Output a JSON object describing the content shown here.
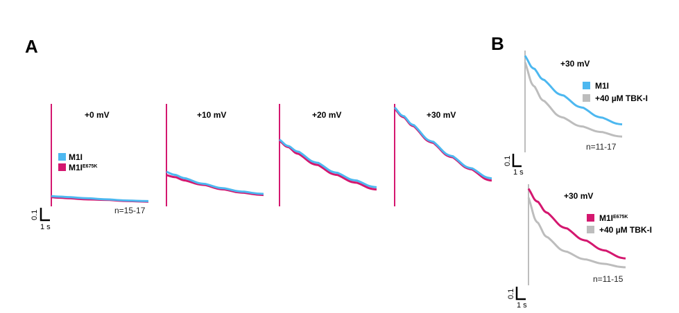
{
  "colors": {
    "M1I": "#4db8f0",
    "M1I_E675K": "#d4176f",
    "TBK": "#bdbdbd"
  },
  "chart_data": [
    {
      "type": "line",
      "panel": "A",
      "title": "+0 mV",
      "n_label": "n=15-17",
      "legend": [
        {
          "name": "M1I",
          "sup": ""
        },
        {
          "name": "M1I",
          "sup": "E675K"
        }
      ],
      "scale_bar": {
        "y": "0.1",
        "x": "1 s"
      },
      "x": [
        0,
        1,
        2,
        4,
        6,
        8,
        10
      ],
      "series": [
        {
          "key": "M1I",
          "values": [
            0.08,
            0.075,
            0.07,
            0.06,
            0.05,
            0.04,
            0.035
          ]
        },
        {
          "key": "M1I_E675K",
          "values": [
            0.07,
            0.065,
            0.06,
            0.05,
            0.045,
            0.035,
            0.03
          ]
        }
      ]
    },
    {
      "type": "line",
      "panel": "A",
      "title": "+10 mV",
      "x": [
        0,
        1,
        2,
        4,
        6,
        8,
        10
      ],
      "series": [
        {
          "key": "M1I",
          "values": [
            0.3,
            0.27,
            0.24,
            0.19,
            0.15,
            0.12,
            0.1
          ]
        },
        {
          "key": "M1I_E675K",
          "values": [
            0.27,
            0.25,
            0.22,
            0.18,
            0.14,
            0.11,
            0.09
          ]
        }
      ]
    },
    {
      "type": "line",
      "panel": "A",
      "title": "+20 mV",
      "x": [
        0,
        1,
        2,
        4,
        6,
        8,
        10
      ],
      "series": [
        {
          "key": "M1I",
          "values": [
            0.59,
            0.53,
            0.48,
            0.38,
            0.29,
            0.22,
            0.16
          ]
        },
        {
          "key": "M1I_E675K",
          "values": [
            0.58,
            0.52,
            0.46,
            0.36,
            0.27,
            0.2,
            0.14
          ]
        }
      ]
    },
    {
      "type": "line",
      "panel": "A",
      "title": "+30 mV",
      "x": [
        0,
        1,
        2,
        4,
        6,
        8,
        10
      ],
      "series": [
        {
          "key": "M1I",
          "values": [
            0.88,
            0.8,
            0.72,
            0.57,
            0.44,
            0.33,
            0.24
          ]
        },
        {
          "key": "M1I_E675K",
          "values": [
            0.87,
            0.79,
            0.71,
            0.56,
            0.43,
            0.32,
            0.22
          ]
        }
      ]
    },
    {
      "type": "line",
      "panel": "B",
      "title": "+30 mV",
      "n_label": "n=11-17",
      "legend": [
        {
          "name": "M1I",
          "sup": ""
        },
        {
          "name": "+40 µM TBK-I",
          "sup": ""
        }
      ],
      "scale_bar": {
        "y": "0.1",
        "x": "1 s"
      },
      "x": [
        0,
        1,
        2,
        4,
        6,
        8,
        10
      ],
      "series": [
        {
          "key": "M1I",
          "values": [
            0.86,
            0.74,
            0.64,
            0.5,
            0.39,
            0.3,
            0.24
          ]
        },
        {
          "key": "TBK",
          "values": [
            0.8,
            0.58,
            0.45,
            0.3,
            0.22,
            0.17,
            0.13
          ]
        }
      ]
    },
    {
      "type": "line",
      "panel": "B",
      "title": "+30 mV",
      "n_label": "n=11-15",
      "legend": [
        {
          "name": "M1I",
          "sup": "E675K"
        },
        {
          "name": "+40 µM TBK-I",
          "sup": ""
        }
      ],
      "scale_bar": {
        "y": "0.1",
        "x": "1 s"
      },
      "x": [
        0,
        1,
        2,
        4,
        6,
        8,
        10
      ],
      "series": [
        {
          "key": "M1I_E675K",
          "values": [
            0.86,
            0.74,
            0.64,
            0.5,
            0.39,
            0.3,
            0.23
          ]
        },
        {
          "key": "TBK",
          "values": [
            0.78,
            0.55,
            0.42,
            0.29,
            0.22,
            0.18,
            0.15
          ]
        }
      ]
    }
  ],
  "panel_labels": [
    "A",
    "B"
  ]
}
